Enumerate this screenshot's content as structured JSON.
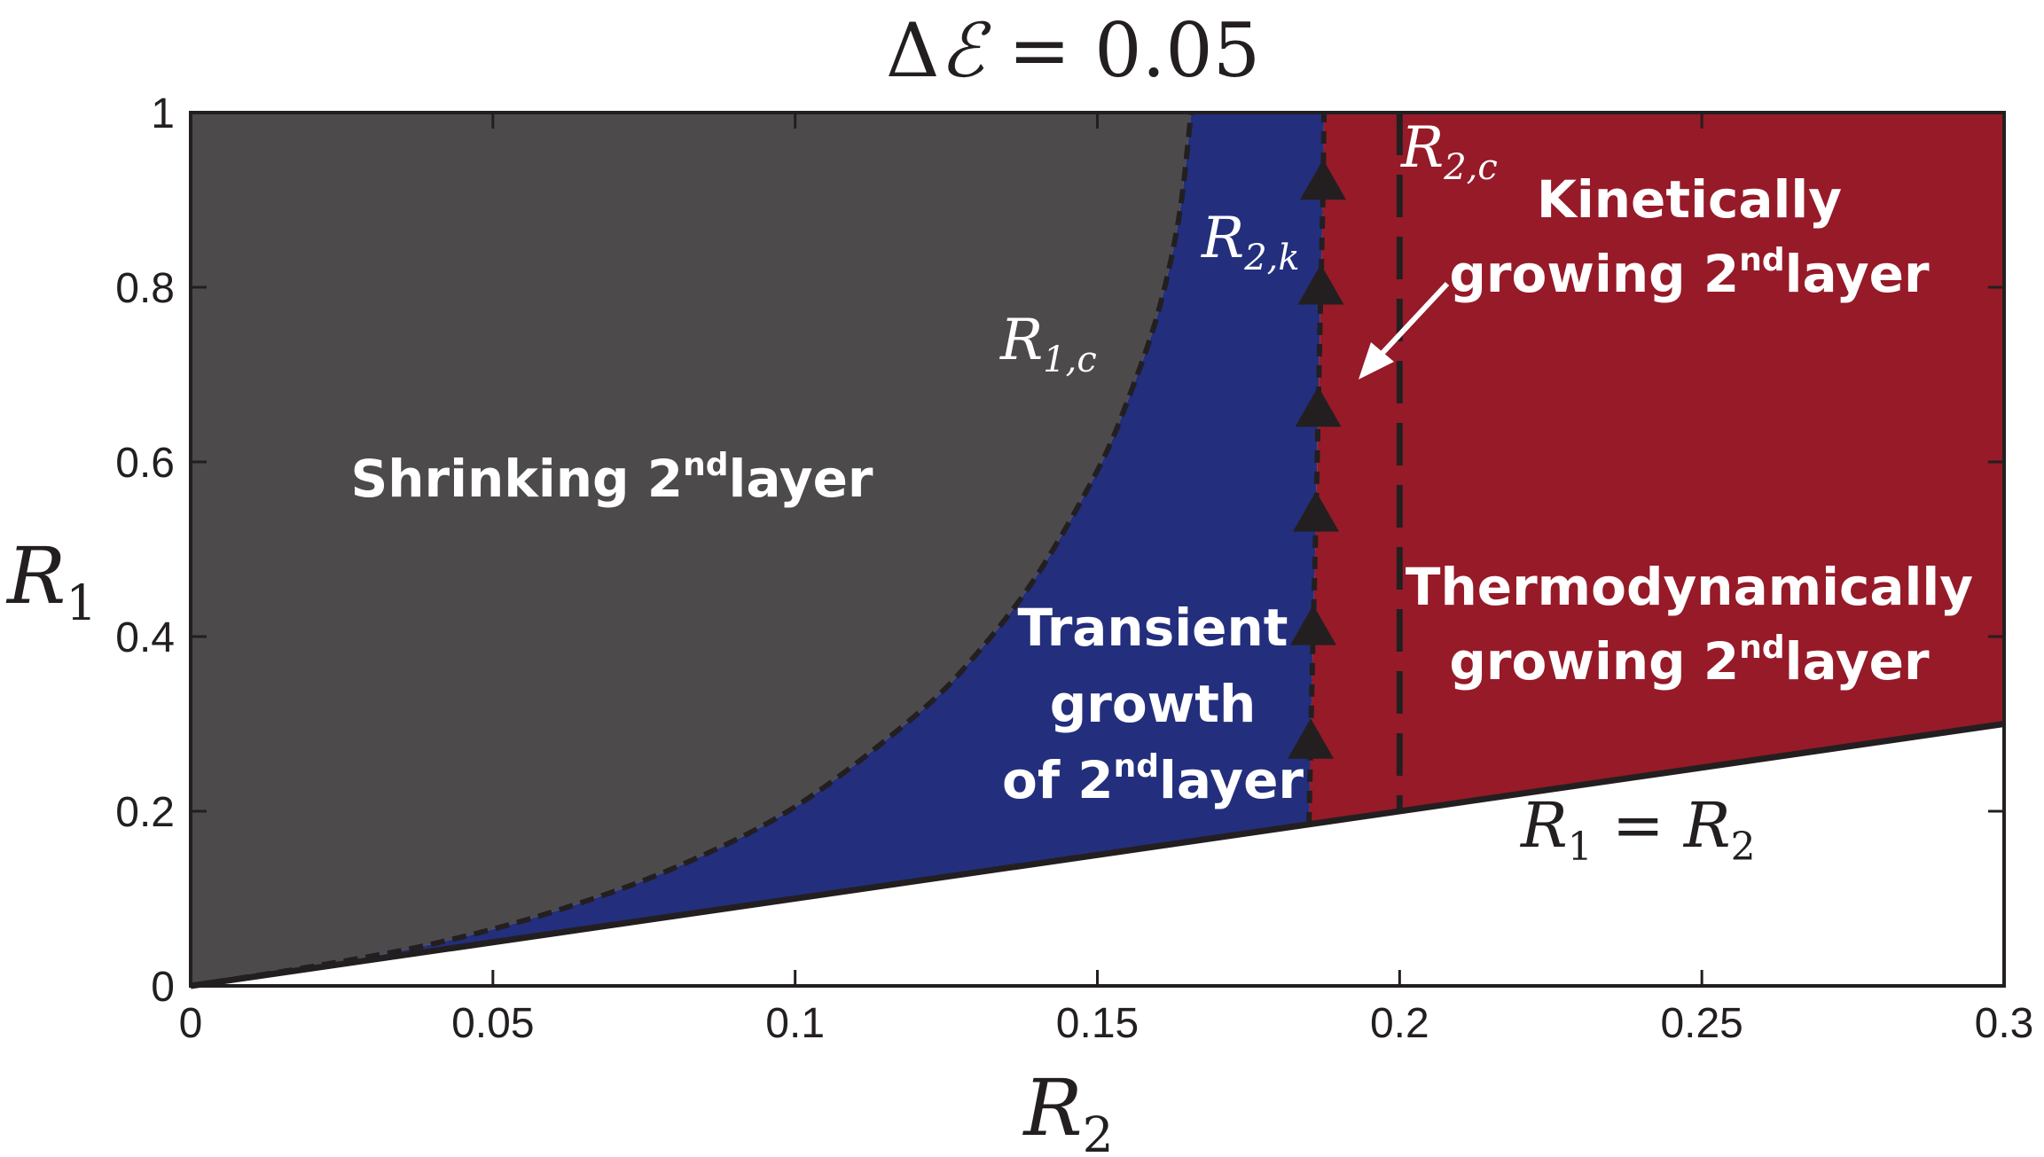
{
  "chart_data": {
    "type": "area",
    "title": "ΔE = 0.05",
    "title_parts": {
      "delta": "Δ",
      "symbol": "ℰ",
      "rest": " = 0.05"
    },
    "xlabel": {
      "base": "R",
      "sub": "2"
    },
    "ylabel": {
      "base": "R",
      "sub": "1"
    },
    "xlim": [
      0,
      0.3
    ],
    "ylim": [
      0,
      1
    ],
    "xticks": [
      0,
      0.05,
      0.1,
      0.15,
      0.2,
      0.25,
      0.3
    ],
    "yticks": [
      0,
      0.2,
      0.4,
      0.6,
      0.8,
      1
    ],
    "xtick_labels": [
      "0",
      "0.05",
      "0.1",
      "0.15",
      "0.2",
      "0.25",
      "0.3"
    ],
    "ytick_labels": [
      "0",
      "0.2",
      "0.4",
      "0.6",
      "0.8",
      "1"
    ],
    "colors": {
      "shrinking": "#4d4a4b",
      "transient": "#232f7d",
      "growing": "#961a28",
      "lines": "#231f20",
      "label_on_dark": "#ffffff",
      "label_on_white": "#231f20"
    },
    "curves": {
      "R1c": {
        "name": "R_{1,c}",
        "points": [
          [
            0,
            0
          ],
          [
            0.02,
            0.022
          ],
          [
            0.04,
            0.048
          ],
          [
            0.06,
            0.085
          ],
          [
            0.08,
            0.135
          ],
          [
            0.1,
            0.205
          ],
          [
            0.12,
            0.31
          ],
          [
            0.13,
            0.38
          ],
          [
            0.14,
            0.47
          ],
          [
            0.15,
            0.59
          ],
          [
            0.155,
            0.67
          ],
          [
            0.16,
            0.77
          ],
          [
            0.1635,
            0.88
          ],
          [
            0.1655,
            1.0
          ]
        ]
      },
      "R2k": {
        "name": "R_{2,k}",
        "points": [
          [
            0.185,
            0.185
          ],
          [
            0.1855,
            0.35
          ],
          [
            0.1862,
            0.55
          ],
          [
            0.1868,
            0.75
          ],
          [
            0.1873,
            0.9
          ],
          [
            0.1875,
            1.0
          ]
        ],
        "triangle_markers_y": [
          0.28,
          0.41,
          0.54,
          0.66,
          0.8,
          0.92
        ]
      },
      "R2c": {
        "name": "R_{2,c}",
        "x": 0.2
      },
      "diagonal": {
        "name": "R_1 = R_2",
        "points": [
          [
            0,
            0
          ],
          [
            0.3,
            0.3
          ]
        ]
      }
    },
    "regions": [
      {
        "name": "shrinking",
        "label_lines": [
          [
            "Shrinking 2",
            "nd",
            "layer"
          ]
        ]
      },
      {
        "name": "transient",
        "label_lines": [
          [
            "Transient"
          ],
          [
            "growth"
          ],
          [
            "of 2",
            "nd",
            "layer"
          ]
        ]
      },
      {
        "name": "kinetic",
        "label_lines": [
          [
            "Kinetically"
          ],
          [
            "growing 2",
            "nd",
            "layer"
          ]
        ]
      },
      {
        "name": "thermo",
        "label_lines": [
          [
            "Thermodynamically"
          ],
          [
            "growing 2",
            "nd",
            "layer"
          ]
        ]
      }
    ],
    "annotations": {
      "R1c": {
        "base": "R",
        "sub": "1,c"
      },
      "R2k": {
        "base": "R",
        "sub": "2,k"
      },
      "R2c": {
        "base": "R",
        "sub": "2,c"
      },
      "diag": {
        "a": "R",
        "asub": "1",
        "eq": " = ",
        "b": "R",
        "bsub": "2"
      }
    }
  }
}
